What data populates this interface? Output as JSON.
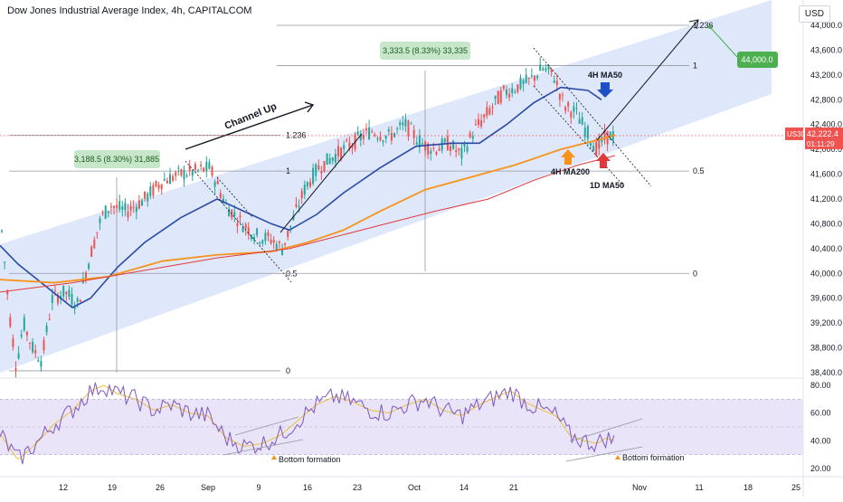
{
  "header": {
    "title": "Dow Jones Industrial Average Index, 4h, CAPITALCOM",
    "currency": "USD"
  },
  "colors": {
    "candle_up": "#26a69a",
    "candle_down": "#ef5350",
    "ma_4h50": "#2a4aa8",
    "ma_4h200": "#f7931a",
    "ma_1d50": "#e03a3a",
    "channel_fill": "#dbe4fb",
    "rsi_band": "#e9e4f7",
    "rsi_line": "#7e57c2",
    "rsi_ma": "#e8c13c",
    "accent_green": "#4caf50"
  },
  "chart_data": {
    "type": "candlestick",
    "symbol": "US30",
    "timeframe": "4h",
    "price_axis": {
      "ticks": [
        "44,000.0",
        "43,600.0",
        "43,200.0",
        "42,800.0",
        "42,400.0",
        "42,000.0",
        "41,600.0",
        "41,200.0",
        "40,800.0",
        "40,400.0",
        "40,000.0",
        "39,600.0",
        "39,200.0",
        "38,800.0",
        "38,400.0"
      ],
      "range": [
        38200,
        44400
      ]
    },
    "rsi_axis": {
      "ticks": [
        "80.00",
        "60.00",
        "40.00",
        "20.00"
      ],
      "range": [
        15,
        85
      ],
      "band": [
        30,
        70
      ]
    },
    "x_ticks": [
      "12",
      "19",
      "26",
      "Sep",
      "9",
      "16",
      "23",
      "Oct",
      "14",
      "21",
      "Nov",
      "11",
      "18",
      "25"
    ],
    "current_price": {
      "symbol": "US30",
      "value": "42,222.4",
      "countdown": "01:11:29"
    },
    "target": {
      "value": "44,000.0"
    },
    "annotations": {
      "channel": "Channel Up",
      "ma_4h50": "4H MA50",
      "ma_4h200": "4H MA200",
      "ma_1d50": "1D MA50",
      "bottom_formation_1": "Bottom formation",
      "bottom_formation_2": "Bottom formation",
      "measure_1": "3,188.5 (8.30%) 31,885",
      "measure_2": "3,333.5 (8.33%) 33,335",
      "fib_left": {
        "f1236": "1.236",
        "f1": "1",
        "f05": "0.5",
        "f0": "0"
      },
      "fib_right": {
        "f1236": "1.236",
        "f1": "1",
        "f05": "0.5",
        "f0": "0"
      }
    }
  }
}
